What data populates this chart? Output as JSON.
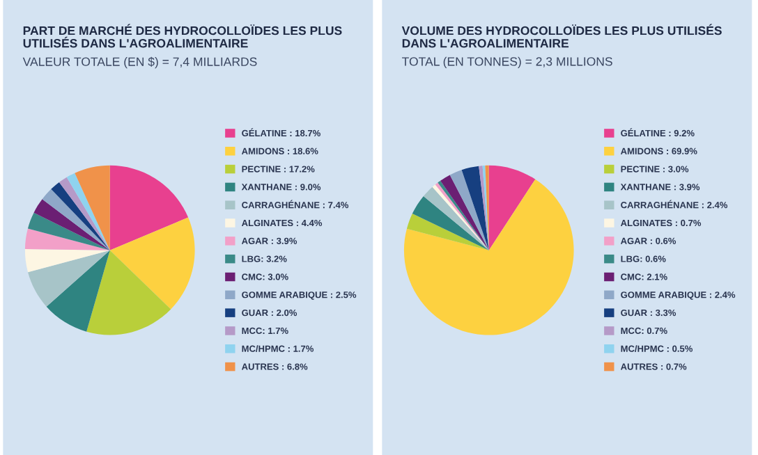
{
  "chart_data": [
    {
      "type": "pie",
      "title": "PART DE MARCHÉ DES HYDROCOLLOÏDES LES PLUS\nUTILISÉS DANS L'AGROALIMENTAIRE",
      "subtitle": "VALEUR TOTALE (EN $) = 7,4 MILLIARDS",
      "categories": [
        "GÉLATINE : 18.7%",
        "AMIDONS : 18.6%",
        "PECTINE : 17.2%",
        "XANTHANE : 9.0%",
        "CARRAGHÉNANE : 7.4%",
        "ALGINATES : 4.4%",
        "AGAR : 3.9%",
        "LBG: 3.2%",
        "CMC: 3.0%",
        "GOMME ARABIQUE : 2.5%",
        "GUAR : 2.0%",
        "MCC: 1.7%",
        "MC/HPMC : 1.7%",
        "AUTRES : 6.8%"
      ],
      "values": [
        18.7,
        18.6,
        17.2,
        9.0,
        7.4,
        4.4,
        3.9,
        3.2,
        3.0,
        2.5,
        2.0,
        1.7,
        1.7,
        6.8
      ],
      "colors": [
        "#e8408f",
        "#fdd140",
        "#b9cf3a",
        "#2f8481",
        "#a7c4c8",
        "#fdf6e3",
        "#f2a0c8",
        "#3a8a88",
        "#6b1f73",
        "#8fa8c8",
        "#163f80",
        "#b59ac8",
        "#8fd3ef",
        "#f0924a"
      ],
      "legend": "right"
    },
    {
      "type": "pie",
      "title": "VOLUME DES HYDROCOLLOÏDES LES PLUS UTILISÉS\nDANS L'AGROALIMENTAIRE",
      "subtitle": "TOTAL (EN TONNES) = 2,3 MILLIONS",
      "categories": [
        "GÉLATINE : 9.2%",
        "AMIDONS : 69.9%",
        "PECTINE : 3.0%",
        "XANTHANE : 3.9%",
        "CARRAGHÉNANE : 2.4%",
        "ALGINATES : 0.7%",
        "AGAR : 0.6%",
        "LBG: 0.6%",
        "CMC: 2.1%",
        "GOMME ARABIQUE : 2.4%",
        "GUAR : 3.3%",
        "MCC: 0.7%",
        "MC/HPMC : 0.5%",
        "AUTRES : 0.7%"
      ],
      "values": [
        9.2,
        69.9,
        3.0,
        3.9,
        2.4,
        0.7,
        0.6,
        0.6,
        2.1,
        2.4,
        3.3,
        0.7,
        0.5,
        0.7
      ],
      "colors": [
        "#e8408f",
        "#fdd140",
        "#b9cf3a",
        "#2f8481",
        "#a7c4c8",
        "#fdf6e3",
        "#f2a0c8",
        "#3a8a88",
        "#6b1f73",
        "#8fa8c8",
        "#163f80",
        "#b59ac8",
        "#8fd3ef",
        "#f0924a"
      ],
      "legend": "right"
    }
  ]
}
